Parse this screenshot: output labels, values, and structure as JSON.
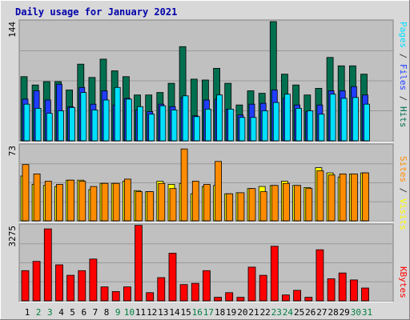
{
  "chart_data": {
    "type": "bar",
    "title": "Daily usage for January 2021",
    "categories": [
      "1",
      "2",
      "3",
      "4",
      "5",
      "6",
      "7",
      "8",
      "9",
      "10",
      "11",
      "12",
      "13",
      "14",
      "15",
      "16",
      "17",
      "18",
      "19",
      "20",
      "21",
      "22",
      "23",
      "24",
      "25",
      "26",
      "27",
      "28",
      "29",
      "30",
      "31"
    ],
    "weekend_days": [
      "2",
      "3",
      "9",
      "10",
      "16",
      "17",
      "23",
      "24",
      "30",
      "31"
    ],
    "panels": [
      {
        "id": "top",
        "ymax_label": "144",
        "ylim": [
          0,
          144
        ],
        "series": [
          {
            "name": "Hits",
            "color": "#006f4f",
            "values": [
              77,
              67,
              71,
              71,
              61,
              92,
              76,
              98,
              84,
              77,
              55,
              55,
              58,
              69,
              113,
              74,
              73,
              87,
              69,
              43,
              60,
              57,
              143,
              80,
              67,
              55,
              63,
              100,
              90,
              90,
              80
            ]
          },
          {
            "name": "Files",
            "color": "#1f3dff",
            "values": [
              50,
              60,
              49,
              68,
              41,
              64,
              44,
              60,
              43,
              51,
              37,
              35,
              44,
              41,
              52,
              30,
              49,
              50,
              38,
              31,
              44,
              45,
              61,
              51,
              43,
              35,
              43,
              60,
              60,
              65,
              55
            ]
          },
          {
            "name": "Pages",
            "color": "#00e0ff",
            "values": [
              44,
              39,
              33,
              36,
              40,
              58,
              37,
              49,
              64,
              50,
              41,
              32,
              42,
              37,
              54,
              29,
              38,
              55,
              38,
              28,
              28,
              36,
              46,
              56,
              39,
              36,
              32,
              56,
              51,
              52,
              44
            ]
          }
        ]
      },
      {
        "id": "mid",
        "ymax_label": "73",
        "ylim": [
          0,
          73
        ],
        "series": [
          {
            "name": "Visits",
            "color": "#ffff00",
            "values": [
              43,
              35,
              34,
              33,
              39,
              39,
              30,
              36,
              36,
              38,
              29,
              28,
              38,
              35,
              36,
              26,
              33,
              34,
              26,
              27,
              31,
              33,
              34,
              38,
              34,
              32,
              51,
              46,
              42,
              45,
              46
            ]
          },
          {
            "name": "Sites",
            "color": "#ff8c00",
            "values": [
              54,
              45,
              38,
              35,
              39,
              38,
              33,
              36,
              36,
              40,
              28,
              28,
              36,
              31,
              69,
              38,
              35,
              57,
              26,
              27,
              31,
              28,
              34,
              36,
              34,
              31,
              48,
              44,
              45,
              45,
              46
            ]
          }
        ]
      },
      {
        "id": "bot",
        "ymax_label": "3275",
        "ylim": [
          0,
          3275
        ],
        "series": [
          {
            "name": "KBytes",
            "color": "#ff0000",
            "values": [
              1300,
              1700,
              3100,
              1550,
              1100,
              1300,
              1800,
              600,
              400,
              600,
              3250,
              350,
              1000,
              2050,
              700,
              750,
              1300,
              150,
              350,
              150,
              1450,
              1100,
              2350,
              250,
              450,
              150,
              2200,
              950,
              1200,
              900,
              550
            ]
          }
        ]
      }
    ],
    "right_labels": {
      "top": [
        {
          "text": "Pages",
          "color": "#00e0ff"
        },
        {
          "text": " / ",
          "color": "#3a3a3a"
        },
        {
          "text": "Files",
          "color": "#1f3dff"
        },
        {
          "text": " / ",
          "color": "#3a3a3a"
        },
        {
          "text": "Hits",
          "color": "#006f4f"
        }
      ],
      "mid": [
        {
          "text": "Sites",
          "color": "#ff8c00"
        },
        {
          "text": " / ",
          "color": "#3a3a3a"
        },
        {
          "text": "Visits",
          "color": "#ffff00"
        }
      ],
      "bot": [
        {
          "text": "KBytes",
          "color": "#ff0000"
        }
      ]
    },
    "colors": {
      "background": "#d8d8d8",
      "plot_bg": "#c0c0c0",
      "title": "#0000aa",
      "weekday_label": "#000000",
      "weekend_label": "#007f40"
    }
  }
}
